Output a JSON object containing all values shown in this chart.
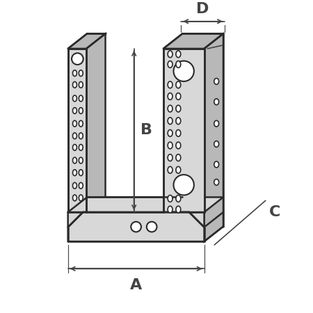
{
  "bg_color": "#ffffff",
  "line_color": "#2a2a2a",
  "fill_light": "#d8d8d8",
  "fill_mid": "#b8b8b8",
  "fill_dark": "#a0a0a0",
  "dim_color": "#444444",
  "labels": {
    "A": "A",
    "B": "B",
    "C": "C",
    "D": "D"
  },
  "label_fontsize": 16,
  "lw_main": 1.8,
  "lw_dim": 1.2
}
